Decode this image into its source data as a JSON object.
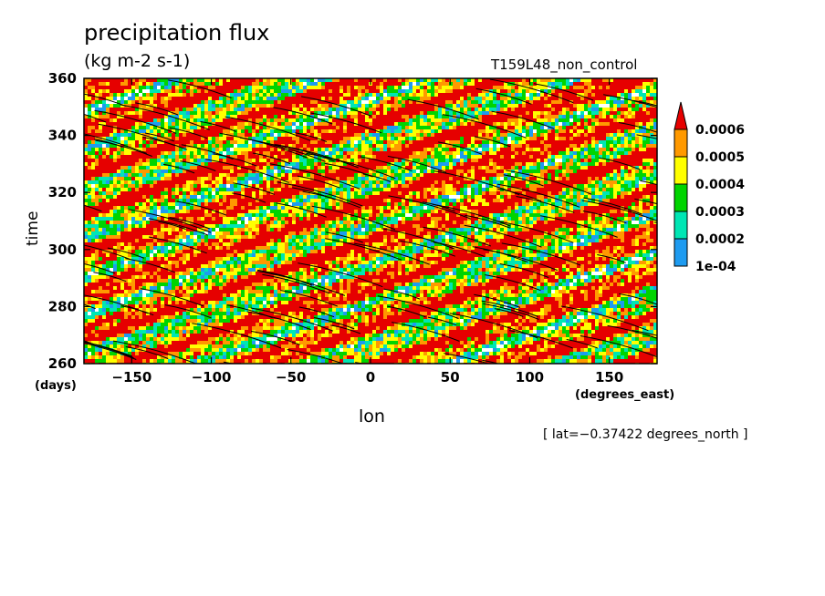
{
  "chart_data": {
    "type": "heatmap",
    "title": "precipitation flux",
    "units": "(kg m-2 s-1)",
    "run_name": "T159L48_non_control",
    "xlabel": "lon",
    "xunits": "(degrees_east)",
    "ylabel": "time",
    "yunits": "(days)",
    "xlim": [
      -180,
      180
    ],
    "ylim": [
      260,
      360
    ],
    "x_ticks": [
      -150,
      -100,
      -50,
      0,
      50,
      100,
      150
    ],
    "y_ticks": [
      260,
      280,
      300,
      320,
      340,
      360
    ],
    "x_tick_labels": [
      "−150",
      "−100",
      "−50",
      "0",
      "50",
      "100",
      "150"
    ],
    "y_tick_labels": [
      "260",
      "280",
      "300",
      "320",
      "340",
      "360"
    ],
    "colorbar": {
      "levels": [
        0.0001,
        0.0002,
        0.0003,
        0.0004,
        0.0005,
        0.0006
      ],
      "labels": [
        "1e-04",
        "0.0002",
        "0.0003",
        "0.0004",
        "0.0005",
        "0.0006"
      ],
      "colors": [
        "#1e9bf0",
        "#00e6b4",
        "#00d400",
        "#ffff00",
        "#ff9900",
        "#e60000"
      ],
      "extend": "max"
    },
    "annotation": "[ lat=−0.37422 degrees_north ]",
    "pattern": "eastward-propagating precipitation bands with contour lines tilted down to the right"
  }
}
